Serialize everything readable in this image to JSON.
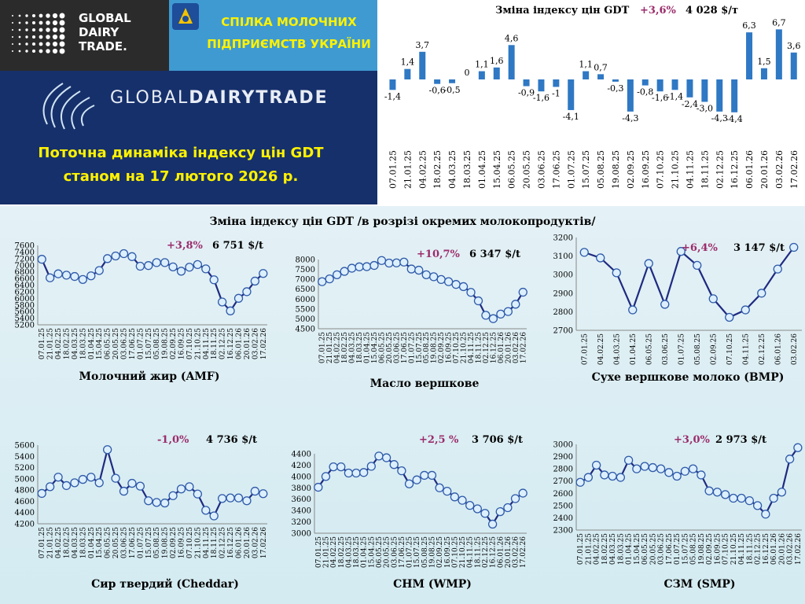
{
  "header": {
    "gdt_logo_text": [
      "GLOBAL",
      "DAIRY",
      "TRADE."
    ],
    "union_name": [
      "СПІЛКА МОЛОЧНИХ",
      "ПІДПРИЄМСТВ УКРАЇНИ"
    ],
    "banner_brand_light": "GLOBAL",
    "banner_brand_bold": "DAIRYTRADE",
    "banner_title": [
      "Поточна динаміка індексу цін GDT",
      "станом на 17 лютого 2026 р."
    ]
  },
  "section_title": "Зміна індексу цін GDT /в розрізі окремих молокопродуктів/",
  "colors": {
    "bar": "#2f78c4",
    "line": "#1f2a80",
    "marker_fill": "#dcefff",
    "pct": "#9b2c6b"
  },
  "chart_data": [
    {
      "type": "bar",
      "title": "Зміна індексу цін GDT",
      "change": "+3,6%",
      "price": "4 028 $/т",
      "categories": [
        "07.01.25",
        "21.01.25",
        "04.02.25",
        "18.02.25",
        "04.03.25",
        "18.03.25",
        "01.04.25",
        "15.04.25",
        "06.05.25",
        "20.05.25",
        "03.06.25",
        "17.06.25",
        "01.07.25",
        "15.07.25",
        "05.08.25",
        "19.08.25",
        "02.09.25",
        "16.09.25",
        "07.10.25",
        "21.10.25",
        "04.11.25",
        "18.11.25",
        "02.12.25",
        "16.12.25",
        "06.01.26",
        "20.01.26",
        "03.02.26",
        "17.02.26"
      ],
      "values": [
        -1.4,
        1.4,
        3.7,
        -0.6,
        -0.5,
        0,
        1.1,
        1.6,
        4.6,
        -0.9,
        -1.6,
        -1.0,
        -4.1,
        1.1,
        0.7,
        -0.3,
        -4.3,
        -0.8,
        -1.6,
        -1.4,
        -2.4,
        -3.0,
        -4.3,
        -4.4,
        6.3,
        1.5,
        6.7,
        3.6
      ],
      "labels": [
        "-1,4",
        "1,4",
        "3,7",
        "-0,6",
        "-0,5",
        "0",
        "1,1",
        "1,6",
        "4,6",
        "-0,9",
        "-1,6",
        "-1",
        "-4,1",
        "1,1",
        "0,7",
        "-0,3",
        "-4,3",
        "-0,8",
        "-1,6",
        "-1,4",
        "-2,4",
        "-3,0",
        "-4,3",
        "-4,4",
        "6,3",
        "1,5",
        "6,7",
        "3,6"
      ]
    },
    {
      "type": "line",
      "name": "Молочний жир (AMF)",
      "change": "+3,8%",
      "price": "6 751 $/t",
      "ylim": [
        5200,
        7600
      ],
      "yticks": [
        5200,
        5400,
        5600,
        5800,
        6000,
        6200,
        6400,
        6600,
        6800,
        7000,
        7200,
        7400,
        7600
      ],
      "categories": [
        "07.01.25",
        "21.01.25",
        "04.02.25",
        "18.02.25",
        "04.03.25",
        "18.03.25",
        "01.04.25",
        "15.04.25",
        "06.05.25",
        "20.05.25",
        "03.06.25",
        "17.06.25",
        "01.07.25",
        "15.07.25",
        "05.08.25",
        "19.08.25",
        "02.09.25",
        "16.09.25",
        "07.10.25",
        "21.10.25",
        "04.11.25",
        "18.11.25",
        "02.12.25",
        "16.12.25",
        "06.01.26",
        "20.01.26",
        "03.02.26",
        "17.02.26"
      ],
      "values": [
        7180,
        6620,
        6740,
        6700,
        6660,
        6570,
        6680,
        6840,
        7200,
        7280,
        7350,
        7260,
        6970,
        6990,
        7080,
        7080,
        6950,
        6820,
        6940,
        7020,
        6890,
        6560,
        5890,
        5620,
        6000,
        6200,
        6520,
        6751
      ]
    },
    {
      "type": "line",
      "name": "Масло вершкове",
      "change": "+10,7%",
      "price": "6 347 $/t",
      "ylim": [
        4500,
        8000
      ],
      "yticks": [
        4500,
        5000,
        5500,
        6000,
        6500,
        7000,
        7500,
        8000
      ],
      "categories": [
        "07.01.25",
        "21.01.25",
        "04.02.25",
        "18.02.25",
        "04.03.25",
        "18.03.25",
        "01.04.25",
        "15.04.25",
        "06.05.25",
        "20.05.25",
        "03.06.25",
        "17.06.25",
        "01.07.25",
        "15.07.25",
        "05.08.25",
        "19.08.25",
        "02.09.25",
        "16.09.25",
        "07.10.25",
        "21.10.25",
        "04.11.25",
        "18.11.25",
        "02.12.25",
        "16.12.25",
        "06.01.26",
        "20.01.26",
        "03.02.26",
        "17.02.26"
      ],
      "values": [
        6880,
        7020,
        7230,
        7400,
        7560,
        7630,
        7640,
        7700,
        7950,
        7820,
        7830,
        7870,
        7520,
        7460,
        7230,
        7130,
        6990,
        6880,
        6740,
        6630,
        6340,
        5910,
        5180,
        5010,
        5240,
        5370,
        5740,
        6347
      ]
    },
    {
      "type": "line",
      "name": "Сухе вершкове молоко (BMP)",
      "change": "+6,4%",
      "price": "3 147 $/t",
      "ylim": [
        2700,
        3200
      ],
      "yticks": [
        2700,
        2800,
        2900,
        3000,
        3100,
        3200
      ],
      "categories": [
        "07.01.25",
        "04.02.25",
        "04.03.25",
        "01.04.25",
        "06.05.25",
        "03.06.25",
        "01.07.25",
        "05.08.25",
        "02.09.25",
        "07.10.25",
        "04.11.25",
        "02.12.25",
        "06.01.26",
        "03.02.26"
      ],
      "values": [
        3120,
        3090,
        3010,
        2810,
        3060,
        2840,
        3125,
        3050,
        2870,
        2770,
        2810,
        2900,
        3030,
        3147
      ]
    },
    {
      "type": "line",
      "name": "Сир твердий (Cheddar)",
      "change": "-1,0%",
      "price": "4 736 $/t",
      "ylim": [
        4200,
        5600
      ],
      "yticks": [
        4200,
        4400,
        4600,
        4800,
        5000,
        5200,
        5400,
        5600
      ],
      "categories": [
        "07.01.25",
        "21.01.25",
        "04.02.25",
        "18.02.25",
        "04.03.25",
        "18.03.25",
        "01.04.25",
        "15.04.25",
        "06.05.25",
        "20.05.25",
        "03.06.25",
        "17.06.25",
        "01.07.25",
        "15.07.25",
        "05.08.25",
        "19.08.25",
        "02.09.25",
        "16.09.25",
        "07.10.25",
        "21.10.25",
        "04.11.25",
        "18.11.25",
        "02.12.25",
        "16.12.25",
        "06.01.26",
        "20.01.26",
        "03.02.26",
        "17.02.26"
      ],
      "values": [
        4740,
        4860,
        5030,
        4880,
        4930,
        4990,
        5030,
        4930,
        5520,
        5010,
        4780,
        4920,
        4870,
        4610,
        4580,
        4570,
        4700,
        4820,
        4860,
        4730,
        4440,
        4340,
        4650,
        4660,
        4660,
        4610,
        4780,
        4736
      ]
    },
    {
      "type": "line",
      "name": "СНМ (WMP)",
      "change": "+2,5 %",
      "price": "3 706 $/t",
      "ylim": [
        3000,
        4400
      ],
      "yticks": [
        3000,
        3200,
        3400,
        3600,
        3800,
        4000,
        4200,
        4400
      ],
      "categories": [
        "07.01.25",
        "21.01.25",
        "04.02.25",
        "18.02.25",
        "04.03.25",
        "18.03.25",
        "01.04.25",
        "15.04.25",
        "06.05.25",
        "20.05.25",
        "03.06.25",
        "17.06.25",
        "01.07.25",
        "15.07.25",
        "05.08.25",
        "19.08.25",
        "02.09.25",
        "16.09.25",
        "07.10.25",
        "21.10.25",
        "04.11.25",
        "18.11.25",
        "02.12.25",
        "16.12.25",
        "06.01.26",
        "20.01.26",
        "03.02.26",
        "17.02.26"
      ],
      "values": [
        3810,
        4000,
        4170,
        4170,
        4060,
        4060,
        4070,
        4180,
        4360,
        4330,
        4210,
        4100,
        3870,
        3940,
        4020,
        4020,
        3800,
        3740,
        3640,
        3580,
        3490,
        3430,
        3350,
        3160,
        3380,
        3450,
        3610,
        3706
      ]
    },
    {
      "type": "line",
      "name": "СЗМ (SMP)",
      "change": "+3,0%",
      "price": "2 973 $/t",
      "ylim": [
        2300,
        3000
      ],
      "yticks": [
        2300,
        2400,
        2500,
        2600,
        2700,
        2800,
        2900,
        3000
      ],
      "categories": [
        "07.01.25",
        "21.01.25",
        "04.02.25",
        "18.02.25",
        "04.03.25",
        "18.03.25",
        "01.04.25",
        "15.04.25",
        "06.05.25",
        "20.05.25",
        "03.06.25",
        "17.06.25",
        "01.07.25",
        "15.07.25",
        "05.08.25",
        "19.08.25",
        "02.09.25",
        "16.09.25",
        "07.10.25",
        "21.10.25",
        "04.11.25",
        "18.11.25",
        "02.12.25",
        "16.12.25",
        "06.01.26",
        "20.01.26",
        "03.02.26",
        "17.02.26"
      ],
      "values": [
        2690,
        2730,
        2830,
        2750,
        2740,
        2730,
        2870,
        2800,
        2820,
        2810,
        2800,
        2770,
        2740,
        2780,
        2800,
        2750,
        2620,
        2610,
        2590,
        2560,
        2560,
        2540,
        2500,
        2430,
        2560,
        2610,
        2880,
        2973
      ]
    }
  ]
}
